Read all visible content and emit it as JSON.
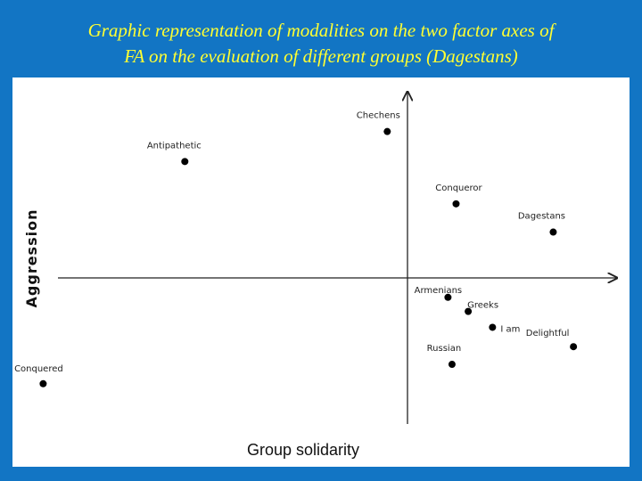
{
  "title": {
    "line1": "Graphic representation of modalities on the two factor axes of",
    "line2": "FA on the evaluation of different groups (Dagestans)"
  },
  "colors": {
    "background": "#1275c4",
    "title": "#ffff33",
    "panel": "#ffffff",
    "point": "#000000"
  },
  "chart_data": {
    "type": "scatter",
    "xlabel": "Group solidarity",
    "ylabel": "Aggression",
    "xlim": [
      -1.0,
      0.6
    ],
    "ylim": [
      -1.0,
      1.0
    ],
    "grid": false,
    "points": [
      {
        "label": "Chechens",
        "x": -0.05,
        "y": 0.83
      },
      {
        "label": "Antipathetic",
        "x": -0.55,
        "y": 0.66
      },
      {
        "label": "Conqueror",
        "x": 0.12,
        "y": 0.42
      },
      {
        "label": "Dagestans",
        "x": 0.36,
        "y": 0.26
      },
      {
        "label": "Armenians",
        "x": 0.1,
        "y": -0.11
      },
      {
        "label": "Greeks",
        "x": 0.15,
        "y": -0.19
      },
      {
        "label": "I am",
        "x": 0.21,
        "y": -0.28
      },
      {
        "label": "Delightful",
        "x": 0.41,
        "y": -0.39
      },
      {
        "label": "Russian",
        "x": 0.11,
        "y": -0.49
      },
      {
        "label": "Conquered",
        "x": -0.9,
        "y": -0.6
      }
    ]
  }
}
